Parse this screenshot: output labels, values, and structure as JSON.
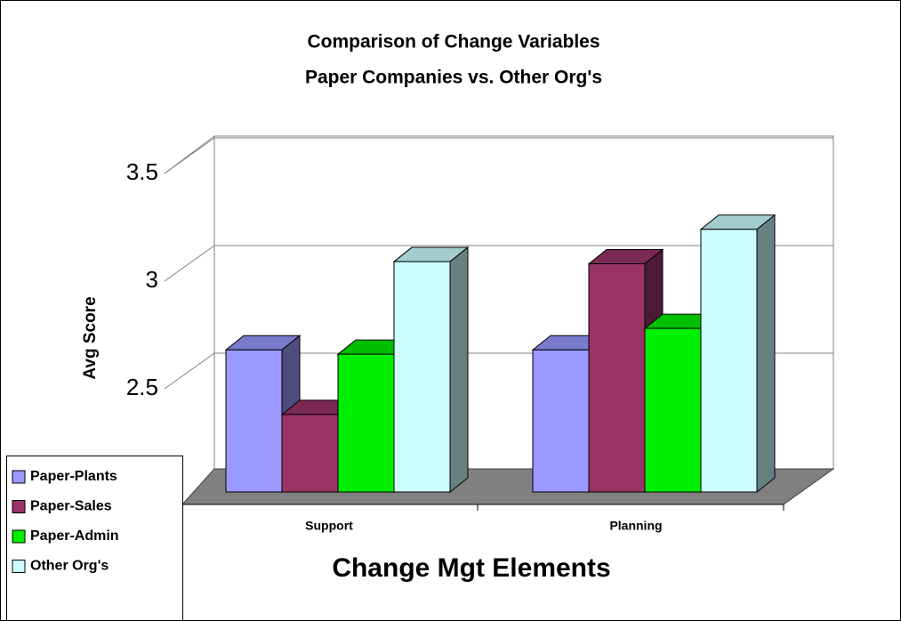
{
  "chart_data": {
    "type": "bar3d",
    "title": [
      "Comparison of Change Variables",
      "Paper Companies vs. Other Org's"
    ],
    "y_label": "Avg Score",
    "x_label": "Change Mgt Elements",
    "categories": [
      "Support",
      "Planning"
    ],
    "series": [
      {
        "name": "Paper-Plants",
        "color": "#9999ff",
        "values": [
          2.66,
          2.66
        ]
      },
      {
        "name": "Paper-Sales",
        "color": "#993366",
        "values": [
          2.36,
          3.06
        ]
      },
      {
        "name": "Paper-Admin",
        "color": "#00ee00",
        "values": [
          2.64,
          2.76
        ]
      },
      {
        "name": "Other Org's",
        "color": "#ccffff",
        "values": [
          3.07,
          3.22
        ]
      }
    ],
    "ylim": [
      2,
      3.5
    ],
    "yticks": [
      2.5,
      3,
      3.5
    ],
    "grid": true,
    "legend": "bottom-left"
  }
}
